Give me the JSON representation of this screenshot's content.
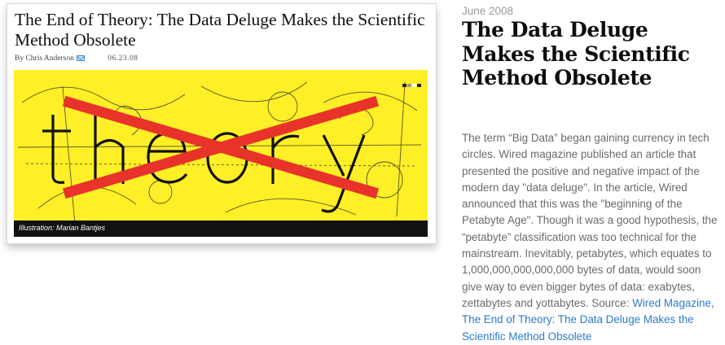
{
  "article_card": {
    "title": "The End of Theory: The Data Deluge Makes the Scientific Method Obsolete",
    "byline_prefix": "By",
    "author": "Chris Anderson",
    "mail_icon": "mail-icon",
    "date": "06.23.08",
    "illustration": {
      "word": "theory",
      "strike_color": "#e8332a",
      "background_color": "#ffef27",
      "credit": "Illustration: Marian Bantjes"
    }
  },
  "sidebar": {
    "kicker": "June 2008",
    "headline": "The Data Deluge Makes the Scientific Method Obsolete",
    "body_text": "The term “Big Data” began gaining currency in tech circles. Wired magazine published an article that presented the positive and negative impact of the modern day \"data deluge\". In the article, Wired announced that this was the \"beginning of the Petabyte Age\". Though it was a good hypothesis, the “petabyte” classification was too technical for the mainstream. Inevitably, petabytes, which equates to 1,000,000,000,000,000 bytes of data, would soon give way to even bigger bytes of data: exabytes, zettabytes and yottabytes. Source:",
    "source_link_1": "Wired Magazine",
    "separator": ",",
    "source_link_2": "The End of Theory: The Data Deluge Makes the Scientific Method Obsolete"
  },
  "colors": {
    "link": "#2b7bcc",
    "kicker": "#9a9a9a",
    "body": "#6a6a6a"
  }
}
